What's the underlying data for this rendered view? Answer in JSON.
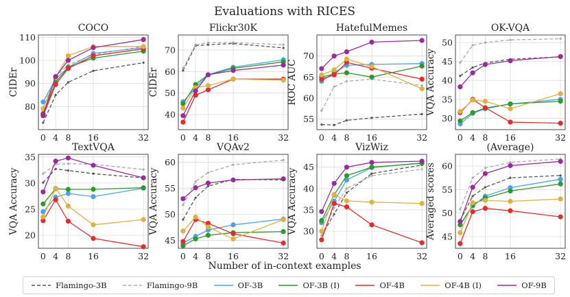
{
  "figure_title": "Evaluations with RICES",
  "xlabel_common": "Number of in-context examples",
  "series_styles": [
    {
      "name": "Flamingo-3B",
      "color": "#555555",
      "dashed": true,
      "marker": false
    },
    {
      "name": "Flamingo-9B",
      "color": "#aaaaaa",
      "dashed": true,
      "marker": false
    },
    {
      "name": "OF-3B",
      "color": "#4aa3e8",
      "dashed": false,
      "marker": true
    },
    {
      "name": "OF-3B (I)",
      "color": "#2a9a2a",
      "dashed": false,
      "marker": true
    },
    {
      "name": "OF-4B",
      "color": "#e82a2a",
      "dashed": false,
      "marker": true
    },
    {
      "name": "OF-4B (I)",
      "color": "#e0b040",
      "dashed": false,
      "marker": true
    },
    {
      "name": "OF-9B",
      "color": "#9b2a9b",
      "dashed": false,
      "marker": true
    }
  ],
  "chart_data": [
    {
      "type": "line",
      "title": "COCO",
      "ylabel": "CIDEr",
      "x": [
        0,
        4,
        8,
        16,
        32
      ],
      "ylim": [
        70,
        111
      ],
      "yticks": [
        80,
        90,
        100,
        110
      ],
      "series": [
        {
          "name": "Flamingo-3B",
          "values": [
            73,
            85,
            90.5,
            95.5,
            99
          ]
        },
        {
          "name": "Flamingo-9B",
          "values": [
            79.5,
            93,
            98,
            102.5,
            106
          ]
        },
        {
          "name": "OF-3B",
          "values": [
            82,
            92,
            97,
            103,
            105.5
          ]
        },
        {
          "name": "OF-3B (I)",
          "values": [
            77,
            90.5,
            97,
            101,
            104
          ]
        },
        {
          "name": "OF-4B",
          "values": [
            76,
            89.5,
            96.5,
            102,
            105
          ]
        },
        {
          "name": "OF-4B (I)",
          "values": [
            79,
            92.5,
            102,
            106,
            106
          ]
        },
        {
          "name": "OF-9B",
          "values": [
            76.5,
            93,
            100,
            105.5,
            109
          ]
        }
      ]
    },
    {
      "type": "line",
      "title": "Flickr30K",
      "ylabel": "CIDEr",
      "x": [
        0,
        4,
        8,
        16,
        32
      ],
      "ylim": [
        33,
        77
      ],
      "yticks": [
        40,
        50,
        60,
        70
      ],
      "series": [
        {
          "name": "Flamingo-3B",
          "values": [
            60.5,
            72,
            72.5,
            73,
            71
          ]
        },
        {
          "name": "Flamingo-9B",
          "values": [
            61.5,
            72.5,
            73.5,
            73.5,
            72.5
          ]
        },
        {
          "name": "OF-3B",
          "values": [
            46,
            52.5,
            58.5,
            62,
            65.5
          ]
        },
        {
          "name": "OF-3B (I)",
          "values": [
            45,
            54,
            58.5,
            61.5,
            64.5
          ]
        },
        {
          "name": "OF-4B",
          "values": [
            36.5,
            49,
            51.5,
            56.5,
            56.5
          ]
        },
        {
          "name": "OF-4B (I)",
          "values": [
            43,
            52.5,
            53.5,
            56.5,
            56
          ]
        },
        {
          "name": "OF-9B",
          "values": [
            39.5,
            51,
            58.5,
            60.5,
            63
          ]
        }
      ]
    },
    {
      "type": "line",
      "title": "HatefulMemes",
      "ylabel": "ROC AUC",
      "x": [
        0,
        4,
        8,
        16,
        32
      ],
      "ylim": [
        52.5,
        75
      ],
      "yticks": [
        55,
        60,
        65,
        70
      ],
      "series": [
        {
          "name": "Flamingo-3B",
          "values": [
            53.7,
            53.6,
            54.7,
            55.3,
            56.2
          ]
        },
        {
          "name": "Flamingo-9B",
          "values": [
            57,
            62.7,
            64,
            64.5,
            63
          ]
        },
        {
          "name": "OF-3B",
          "values": [
            64,
            66,
            67.8,
            68,
            68.2
          ]
        },
        {
          "name": "OF-3B (I)",
          "values": [
            65,
            65.7,
            66,
            65,
            67.6
          ]
        },
        {
          "name": "OF-4B",
          "values": [
            64.5,
            65.5,
            68.5,
            67.1,
            64.5
          ]
        },
        {
          "name": "OF-4B (I)",
          "values": [
            65.5,
            66.7,
            69.3,
            67.5,
            62.2
          ]
        },
        {
          "name": "OF-9B",
          "values": [
            67,
            70,
            71,
            73.3,
            73.7
          ]
        }
      ]
    },
    {
      "type": "line",
      "title": "OK-VQA",
      "ylabel": "VQA Accuracy",
      "x": [
        0,
        4,
        8,
        16,
        32
      ],
      "ylim": [
        27,
        52
      ],
      "yticks": [
        30,
        35,
        40,
        45,
        50
      ],
      "series": [
        {
          "name": "Flamingo-3B",
          "values": [
            41.2,
            43.4,
            44.6,
            45.6,
            46.2
          ]
        },
        {
          "name": "Flamingo-9B",
          "values": [
            44.7,
            49.3,
            50,
            50.7,
            51
          ]
        },
        {
          "name": "OF-3B",
          "values": [
            28.5,
            31.3,
            32.5,
            33.8,
            35
          ]
        },
        {
          "name": "OF-3B (I)",
          "values": [
            29.3,
            31.5,
            32.7,
            33.8,
            34.5
          ]
        },
        {
          "name": "OF-4B",
          "values": [
            31.5,
            35,
            32.8,
            29,
            28.7
          ]
        },
        {
          "name": "OF-4B (I)",
          "values": [
            31.8,
            34.8,
            34.5,
            32.5,
            36.5
          ]
        },
        {
          "name": "OF-9B",
          "values": [
            38.3,
            42,
            44.2,
            45.2,
            46.3
          ]
        }
      ]
    },
    {
      "type": "line",
      "title": "TextVQA",
      "ylabel": "VQA Accuracy",
      "x": [
        0,
        4,
        8,
        16,
        32
      ],
      "ylim": [
        17.5,
        35.5
      ],
      "yticks": [
        20,
        25,
        30,
        35
      ],
      "series": [
        {
          "name": "Flamingo-3B",
          "values": [
            30.1,
            32.7,
            32.4,
            31.8,
            31
          ]
        },
        {
          "name": "Flamingo-9B",
          "values": [
            31.8,
            33.6,
            33.7,
            33.6,
            32.6
          ]
        },
        {
          "name": "OF-3B",
          "values": [
            24.5,
            27.3,
            28,
            27.4,
            29
          ]
        },
        {
          "name": "OF-3B (I)",
          "values": [
            26,
            28.9,
            28.8,
            28.8,
            29.1
          ]
        },
        {
          "name": "OF-4B",
          "values": [
            22.8,
            26.8,
            22.7,
            19.4,
            17.8
          ]
        },
        {
          "name": "OF-4B (I)",
          "values": [
            23.5,
            29,
            25.6,
            22,
            23
          ]
        },
        {
          "name": "OF-9B",
          "values": [
            28.3,
            34.2,
            34.8,
            33.4,
            31
          ]
        }
      ]
    },
    {
      "type": "line",
      "title": "VQAv2",
      "ylabel": "VQA Accuracy",
      "x": [
        0,
        4,
        8,
        16,
        32
      ],
      "ylim": [
        43.5,
        61.5
      ],
      "yticks": [
        45,
        50,
        55,
        60
      ],
      "series": [
        {
          "name": "Flamingo-3B",
          "values": [
            49,
            53.2,
            55.4,
            56.7,
            56.6
          ]
        },
        {
          "name": "Flamingo-9B",
          "values": [
            51.8,
            56.3,
            58,
            59.5,
            60.4
          ]
        },
        {
          "name": "OF-3B",
          "values": [
            44.5,
            45.8,
            47,
            48,
            49.1
          ]
        },
        {
          "name": "OF-3B (I)",
          "values": [
            44,
            45.3,
            46,
            46.5,
            46.7
          ]
        },
        {
          "name": "OF-4B",
          "values": [
            44.8,
            49,
            48.3,
            46.3,
            44.5
          ]
        },
        {
          "name": "OF-4B (I)",
          "values": [
            46.8,
            49.5,
            47.6,
            45.3,
            49
          ]
        },
        {
          "name": "OF-9B",
          "values": [
            53,
            55.1,
            56,
            56.6,
            56.8
          ]
        }
      ]
    },
    {
      "type": "line",
      "title": "VizWiz",
      "ylabel": "VQA Accuracy",
      "x": [
        0,
        4,
        8,
        16,
        32
      ],
      "ylim": [
        26,
        48
      ],
      "yticks": [
        30,
        35,
        40,
        45
      ],
      "series": [
        {
          "name": "Flamingo-3B",
          "values": [
            29,
            34,
            39,
            43.5,
            45.5
          ]
        },
        {
          "name": "Flamingo-9B",
          "values": [
            29,
            35.5,
            40,
            43,
            44.5
          ]
        },
        {
          "name": "OF-3B",
          "values": [
            32,
            37,
            42,
            44.9,
            46
          ]
        },
        {
          "name": "OF-3B (I)",
          "values": [
            32.5,
            38.5,
            43,
            45,
            45.9
          ]
        },
        {
          "name": "OF-4B",
          "values": [
            28,
            36.5,
            35.7,
            31.5,
            27.3
          ]
        },
        {
          "name": "OF-4B (I)",
          "values": [
            30,
            38.6,
            37.1,
            36.8,
            36.5
          ]
        },
        {
          "name": "OF-9B",
          "values": [
            34.6,
            41.2,
            45,
            46.1,
            46.4
          ]
        }
      ]
    },
    {
      "type": "line",
      "title": "(Average)",
      "ylabel": "Averaged scores",
      "x": [
        0,
        4,
        8,
        16,
        32
      ],
      "ylim": [
        42.5,
        62.5
      ],
      "yticks": [
        45,
        50,
        55,
        60
      ],
      "series": [
        {
          "name": "Flamingo-3B",
          "values": [
            48.5,
            53.6,
            55.5,
            57.5,
            58
          ]
        },
        {
          "name": "Flamingo-9B",
          "values": [
            50.8,
            57.5,
            59.6,
            60.8,
            61.5
          ]
        },
        {
          "name": "OF-3B",
          "values": [
            47.5,
            51.5,
            53.6,
            55.4,
            57.2
          ]
        },
        {
          "name": "OF-3B (I)",
          "values": [
            47.5,
            51.7,
            53.2,
            54.7,
            56.2
          ]
        },
        {
          "name": "OF-4B",
          "values": [
            43.5,
            50.3,
            51,
            50.5,
            49.2
          ]
        },
        {
          "name": "OF-4B (I)",
          "values": [
            45.8,
            52.2,
            52.7,
            52.5,
            53
          ]
        },
        {
          "name": "OF-9B",
          "values": [
            48.2,
            55.5,
            58.4,
            60.1,
            61
          ]
        }
      ]
    }
  ]
}
